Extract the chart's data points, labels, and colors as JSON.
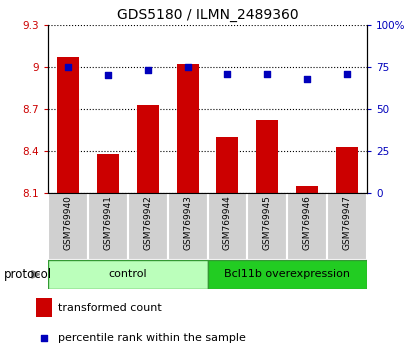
{
  "title": "GDS5180 / ILMN_2489360",
  "samples": [
    "GSM769940",
    "GSM769941",
    "GSM769942",
    "GSM769943",
    "GSM769944",
    "GSM769945",
    "GSM769946",
    "GSM769947"
  ],
  "transformed_counts": [
    9.07,
    8.38,
    8.73,
    9.02,
    8.5,
    8.62,
    8.15,
    8.43
  ],
  "percentile_ranks": [
    75,
    70,
    73,
    75,
    71,
    71,
    68,
    71
  ],
  "ylim_left": [
    8.1,
    9.3
  ],
  "ylim_right": [
    0,
    100
  ],
  "yticks_left": [
    8.1,
    8.4,
    8.7,
    9.0,
    9.3
  ],
  "ytick_labels_left": [
    "8.1",
    "8.4",
    "8.7",
    "9",
    "9.3"
  ],
  "yticks_right": [
    0,
    25,
    50,
    75,
    100
  ],
  "ytick_labels_right": [
    "0",
    "25",
    "50",
    "75",
    "100%"
  ],
  "bar_color": "#cc0000",
  "dot_color": "#0000bb",
  "control_color": "#bbffbb",
  "overexp_color": "#22cc22",
  "sample_bg_color": "#d0d0d0",
  "protocol_label": "protocol",
  "legend_bar_label": "transformed count",
  "legend_dot_label": "percentile rank within the sample",
  "bar_width": 0.55,
  "baseline": 8.1,
  "n_control": 4,
  "n_overexp": 4
}
